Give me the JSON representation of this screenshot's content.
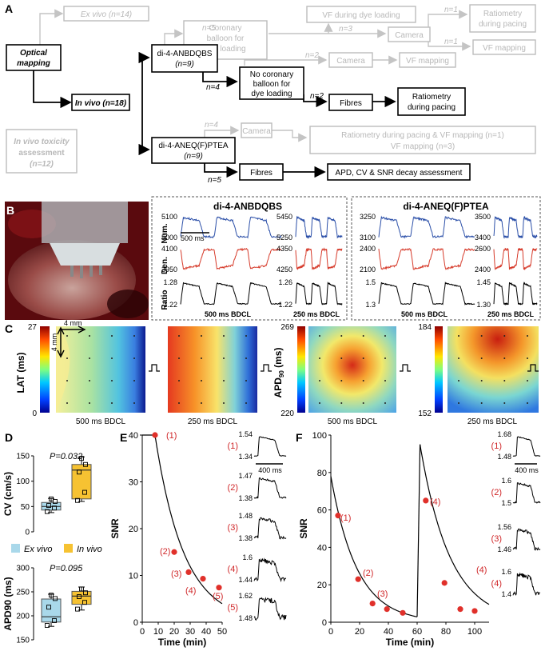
{
  "panel_labels": {
    "a": "A",
    "b": "B",
    "c": "C",
    "d": "D",
    "e": "E",
    "f": "F"
  },
  "flowchart": {
    "optical_mapping": "Optical mapping",
    "ex_vivo": "Ex vivo (n=14)",
    "in_vivo": "In vivo (n=18)",
    "toxicity": [
      "In vivo toxicity",
      "assessment",
      "(n=12)"
    ],
    "anbdqbs": [
      "di-4-ANBDQBS",
      "(n=9)"
    ],
    "aneq": [
      "di-4-ANEQ(F)PTEA",
      "(n=9)"
    ],
    "no_coronary": [
      "No coronary",
      "balloon for",
      "dye loading"
    ],
    "coronary": [
      "Coronary",
      "balloon for",
      "dye loading"
    ],
    "vf_dye": "VF during dye loading",
    "camera": "Camera",
    "ratiometry_pacing": [
      "Ratiometry",
      "during pacing"
    ],
    "vf_mapping": "VF mapping",
    "fibres": "Fibres",
    "ratio_vf": [
      "Ratiometry during pacing & VF mapping  (n=1)",
      "VF mapping (n=3)"
    ],
    "apd_cv_snr": "APD, CV & SNR decay assessment",
    "n_labels": {
      "n5_top": "n=5",
      "n3": "n=3",
      "n1_a": "n=1",
      "n1_b": "n=1",
      "n4_a": "n=4",
      "n2_a": "n=2",
      "n2_b": "n=2",
      "n4_b": "n=4",
      "n5_b": "n=5"
    }
  },
  "panel_b": {
    "title_left": "di-4-ANBDQBS",
    "title_right": "di-4-ANEQ(F)PTEA",
    "row_labels": [
      "Num.",
      "Den.",
      "Ratio"
    ],
    "scale_bar": "500 ms",
    "bdcl_500": "500 ms BDCL",
    "bdcl_250": "250 ms BDCL",
    "ticks_left_500": [
      [
        "5100",
        "5000"
      ],
      [
        "4100",
        "3950"
      ],
      [
        "1.28",
        "1.22"
      ]
    ],
    "ticks_left_250": [
      [
        "5450",
        "5250"
      ],
      [
        "4350",
        "4250"
      ],
      [
        "1.26",
        "1.22"
      ]
    ],
    "ticks_right_500": [
      [
        "3250",
        "3100"
      ],
      [
        "2400",
        "2100"
      ],
      [
        "1.5",
        "1.3"
      ]
    ],
    "ticks_right_250": [
      [
        "3500",
        "3400"
      ],
      [
        "2600",
        "2400"
      ],
      [
        "1.45",
        "1.30"
      ]
    ],
    "colors": {
      "num": "#2b4fa8",
      "den": "#d63a2a",
      "ratio": "#000000"
    }
  },
  "panel_c": {
    "lat_label": "LAT (ms)",
    "lat_range": [
      "27",
      "0"
    ],
    "apd_label": "APD90 (ms)",
    "apd_500_range": [
      "269",
      "220"
    ],
    "apd_250_range": [
      "184",
      "152"
    ],
    "scale": "4 mm",
    "captions": [
      "500 ms BDCL",
      "250 ms BDCL",
      "500 ms BDCL",
      "250 ms BDCL"
    ]
  },
  "chart_data": [
    {
      "type": "box",
      "id": "cv",
      "ylabel": "CV (cm/s)",
      "ylim": [
        0,
        150
      ],
      "yticks": [
        0,
        50,
        100,
        150
      ],
      "pvalue": "P=0.032",
      "series": [
        {
          "name": "Ex vivo",
          "color": "#a9d8ea",
          "points": [
            40,
            47,
            52,
            60,
            65
          ],
          "q1": 43,
          "median": 50,
          "q3": 58,
          "whisker": [
            38,
            66
          ]
        },
        {
          "name": "In vivo",
          "color": "#f6c232",
          "points": [
            62,
            78,
            118,
            133,
            145
          ],
          "q1": 65,
          "median": 122,
          "q3": 133,
          "whisker": [
            60,
            148
          ]
        }
      ]
    },
    {
      "type": "box",
      "id": "apd",
      "ylabel": "APD90 (ms)",
      "ylim": [
        150,
        300
      ],
      "yticks": [
        150,
        200,
        250,
        300
      ],
      "pvalue": "P=0.095",
      "series": [
        {
          "name": "Ex vivo",
          "color": "#a9d8ea",
          "points": [
            180,
            190,
            218,
            236,
            243
          ],
          "q1": 187,
          "median": 198,
          "q3": 235,
          "whisker": [
            178,
            245
          ]
        },
        {
          "name": "In vivo",
          "color": "#f6c232",
          "points": [
            214,
            228,
            240,
            248,
            256
          ],
          "q1": 224,
          "median": 241,
          "q3": 251,
          "whisker": [
            212,
            260
          ]
        }
      ]
    },
    {
      "type": "scatter",
      "id": "snr_e",
      "xlabel": "Time (min)",
      "ylabel": "SNR",
      "xlim": [
        0,
        50
      ],
      "ylim": [
        0,
        40
      ],
      "xticks": [
        0,
        10,
        20,
        30,
        40,
        50
      ],
      "yticks": [
        0,
        10,
        20,
        30,
        40
      ],
      "points": [
        [
          8,
          40
        ],
        [
          20,
          15
        ],
        [
          29,
          10.7
        ],
        [
          38,
          9.3
        ],
        [
          48,
          7.4
        ]
      ],
      "point_labels": [
        "(1)",
        "(2)",
        "(3)",
        "(4)",
        "(5)"
      ],
      "fit": {
        "model": "exponential",
        "a": 62,
        "k": 0.055
      }
    },
    {
      "type": "scatter",
      "id": "snr_f",
      "xlabel": "Time (min)",
      "ylabel": "SNR",
      "xlim": [
        0,
        110
      ],
      "ylim": [
        0,
        100
      ],
      "xticks": [
        0,
        20,
        40,
        60,
        80,
        100
      ],
      "yticks": [
        0,
        20,
        40,
        60,
        80,
        100
      ],
      "points": [
        [
          5,
          57
        ],
        [
          19,
          23
        ],
        [
          29,
          10
        ],
        [
          39,
          7
        ],
        [
          50,
          5
        ],
        [
          66,
          65
        ],
        [
          79,
          21
        ],
        [
          90,
          7
        ],
        [
          100,
          6
        ]
      ],
      "point_labels": [
        "(1)",
        "(2)",
        "(3)",
        "(4)"
      ],
      "fit": {
        "model": "piecewise-exponential",
        "segments": [
          {
            "t0": 0,
            "t1": 60,
            "a": 78,
            "k": 0.055
          },
          {
            "t0": 62,
            "t1": 110,
            "a": 95,
            "k": 0.048
          }
        ]
      }
    }
  ],
  "legend_d": [
    {
      "name": "Ex vivo",
      "color": "#a9d8ea"
    },
    {
      "name": "In vivo",
      "color": "#f6c232"
    }
  ],
  "insets_e": {
    "labels": [
      "(1)",
      "(2)",
      "(3)",
      "(4)",
      "(5)"
    ],
    "ticks": [
      [
        "1.54",
        "1.34"
      ],
      [
        "1.47",
        "1.38"
      ],
      [
        "1.48",
        "1.38"
      ],
      [
        "1.6",
        "1.44"
      ],
      [
        "1.62",
        "1.48"
      ]
    ],
    "scale_bar": "400 ms"
  },
  "insets_f": {
    "labels": [
      "(1)",
      "(2)",
      "(3)",
      "(4)"
    ],
    "ticks": [
      [
        "1.68",
        "1.48"
      ],
      [
        "1.6",
        "1.5"
      ],
      [
        "1.56",
        "1.46"
      ],
      [
        "1.6",
        "1.4"
      ]
    ],
    "scale_bar": "400 ms"
  }
}
